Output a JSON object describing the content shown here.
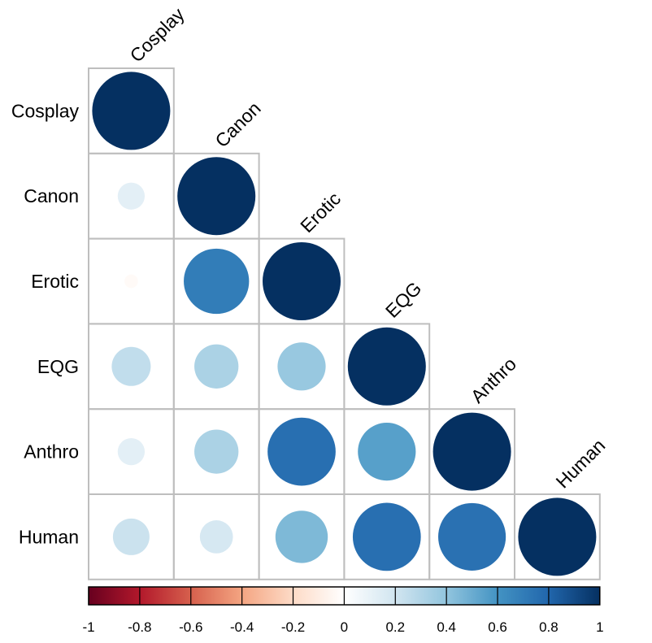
{
  "chart_data": {
    "type": "heatmap",
    "variables": [
      "Cosplay",
      "Canon",
      "Erotic",
      "EQG",
      "Anthro",
      "Human"
    ],
    "matrix": [
      [
        1.0
      ],
      [
        0.12,
        1.0
      ],
      [
        -0.03,
        0.7,
        1.0
      ],
      [
        0.25,
        0.32,
        0.38,
        1.0
      ],
      [
        0.12,
        0.32,
        0.76,
        0.55,
        1.0
      ],
      [
        0.22,
        0.18,
        0.45,
        0.76,
        0.75,
        1.0
      ]
    ],
    "layout": "lower-triangle",
    "colorbar": {
      "range": [
        -1,
        1
      ],
      "ticks": [
        "-1",
        "-0.8",
        "-0.6",
        "-0.4",
        "-0.2",
        "0",
        "0.2",
        "0.4",
        "0.6",
        "0.8",
        "1"
      ],
      "placement": "bottom"
    },
    "colors": {
      "negative_end": "#67001f",
      "positive_end": "#053061",
      "cell_border": "#bebebe"
    }
  }
}
